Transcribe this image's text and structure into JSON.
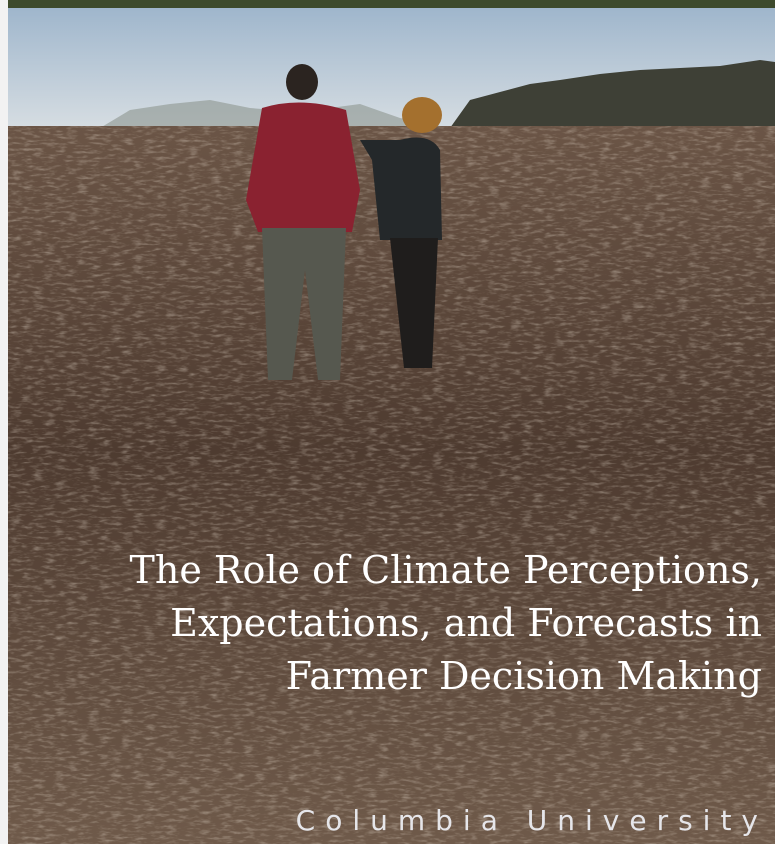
{
  "title": [
    "The Role of Climate Perceptions,",
    "Expectations, and Forecasts in",
    "Farmer Decision Making"
  ],
  "publisher": "Columbia University"
}
